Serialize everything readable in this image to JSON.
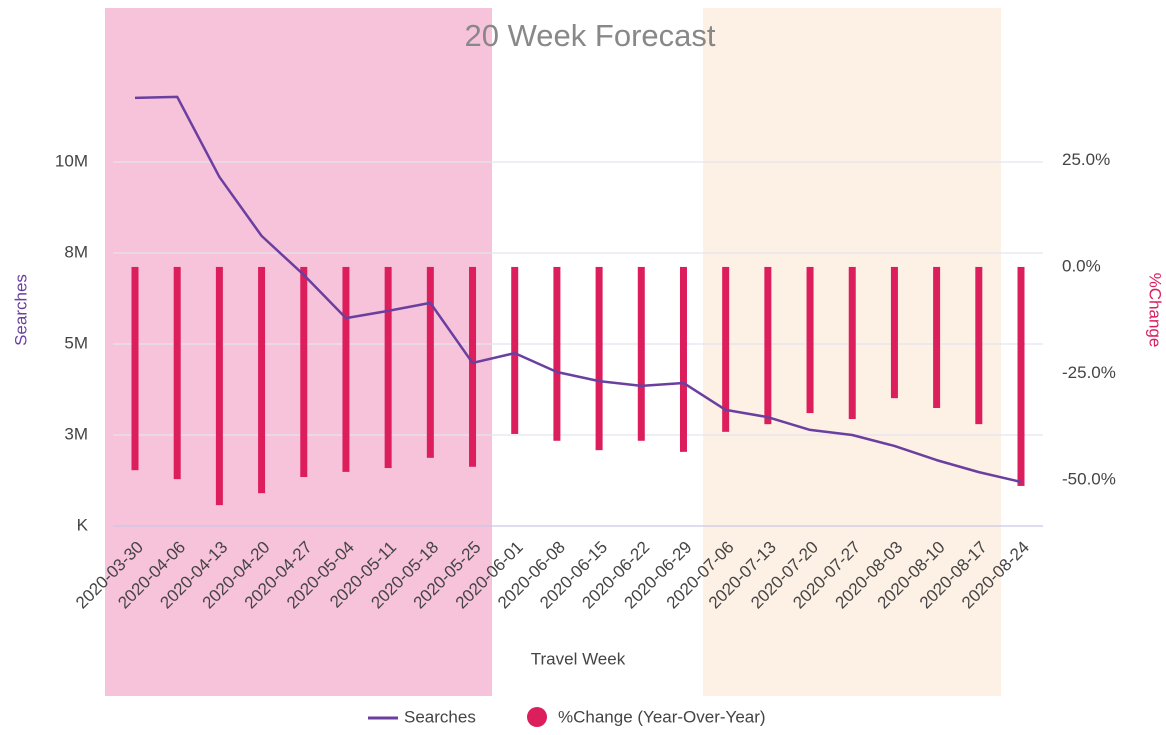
{
  "chart_data": {
    "type": "bar_line",
    "title": "20 Week Forecast",
    "x_label": "Travel Week",
    "y_label": "Searches",
    "y2_label": "%Change",
    "categories": [
      "2020-03-30",
      "2020-04-06",
      "2020-04-13",
      "2020-04-20",
      "2020-04-27",
      "2020-05-04",
      "2020-05-11",
      "2020-05-18",
      "2020-05-25",
      "2020-06-01",
      "2020-06-08",
      "2020-06-15",
      "2020-06-22",
      "2020-06-29",
      "2020-07-06",
      "2020-07-13",
      "2020-07-20",
      "2020-07-27",
      "2020-08-03",
      "2020-08-10",
      "2020-08-17",
      "2020-08-24"
    ],
    "series": [
      {
        "name": "Searches",
        "type": "line",
        "color": "#6a3fa0",
        "axis": "y",
        "values": [
          11760000,
          11790000,
          9590000,
          7970000,
          6900000,
          5710000,
          5910000,
          6130000,
          4480000,
          4750000,
          4230000,
          3980000,
          3850000,
          3930000,
          3190000,
          2990000,
          2640000,
          2500000,
          2200000,
          1810000,
          1480000,
          1210000
        ]
      },
      {
        "name": "%Change (Year-Over-Year)",
        "type": "bar",
        "color": "#dc1e5c",
        "axis": "y2",
        "values": [
          -47.7,
          -49.8,
          -55.9,
          -53.1,
          -49.3,
          -48.1,
          -47.2,
          -44.8,
          -46.9,
          -39.2,
          -40.8,
          -43.0,
          -40.8,
          -43.4,
          -38.7,
          -36.9,
          -34.3,
          -35.7,
          -30.8,
          -33.1,
          -36.9,
          -51.4
        ]
      }
    ],
    "ylim": [
      0,
      14000000
    ],
    "yticks": [
      {
        "value": 0,
        "label": "K"
      },
      {
        "value": 2500000,
        "label": "3M"
      },
      {
        "value": 5000000,
        "label": "5M"
      },
      {
        "value": 7500000,
        "label": "8M"
      },
      {
        "value": 10000000,
        "label": "10M"
      }
    ],
    "y2lim": [
      -60.8,
      58.8
    ],
    "y2ticks": [
      {
        "value": 25,
        "label": "25.0%"
      },
      {
        "value": 0,
        "label": "0.0%"
      },
      {
        "value": -25,
        "label": "-25.0%"
      },
      {
        "value": -50,
        "label": "-50.0%"
      }
    ],
    "grid": true,
    "legend": "bottom"
  }
}
